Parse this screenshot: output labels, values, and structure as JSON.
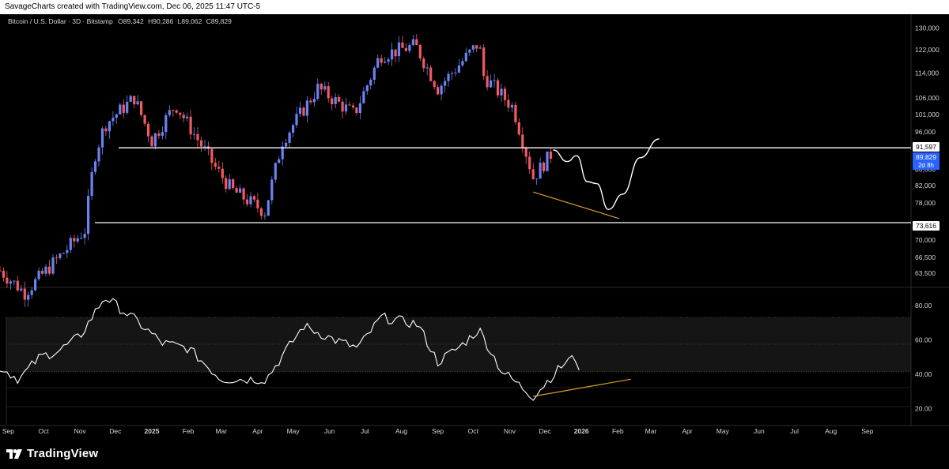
{
  "header": {
    "watermark": "SavageCharts created with TradingView.com, Dec 06, 2025 11:47 UTC-5"
  },
  "legend": {
    "symbol": "Bitcoin / U.S. Dollar · 3D · Bitstamp",
    "open_label": "O",
    "open": "89,342",
    "high_label": "H",
    "high": "90,286",
    "low_label": "L",
    "low": "89,062",
    "close_label": "C",
    "close": "89,829"
  },
  "price_badges": {
    "resistance": "91,597",
    "support": "73,616",
    "last_price": "89,829",
    "countdown": "2d 8h"
  },
  "footer": {
    "logo_text": "TradingView"
  },
  "colors": {
    "up": "#6b82f2",
    "down": "#ef5a63",
    "line": "#ffffff",
    "trend": "#d4a02a",
    "last_price_badge": "#2962ff",
    "rsi_band": "#161616"
  },
  "chart_data": [
    {
      "type": "candlestick",
      "title": "Bitcoin / U.S. Dollar · 3D · Bitstamp",
      "y_scale": "log",
      "ylim": [
        62500,
        131000
      ],
      "y_ticks": [
        "130,000",
        "122,000",
        "114,000",
        "106,000",
        "101,000",
        "96,000",
        "91,597",
        "86,000",
        "82,000",
        "78,000",
        "73,616",
        "70,000",
        "66,500",
        "63,500"
      ],
      "x_ticks": [
        "Sep",
        "Oct",
        "Nov",
        "Dec",
        "2025",
        "Feb",
        "Mar",
        "Apr",
        "May",
        "Jun",
        "Jul",
        "Aug",
        "Sep",
        "Oct",
        "Nov",
        "Dec",
        "2026",
        "Feb",
        "Mar",
        "Apr",
        "May",
        "Jun",
        "Jul",
        "Aug",
        "Sep"
      ],
      "horizontal_levels": [
        91597,
        73616
      ],
      "approx_close_path": [
        {
          "date": "2024-08-25",
          "close": 64000
        },
        {
          "date": "2024-09-15",
          "close": 60000
        },
        {
          "date": "2024-10-01",
          "close": 63500
        },
        {
          "date": "2024-10-20",
          "close": 68000
        },
        {
          "date": "2024-11-05",
          "close": 72000
        },
        {
          "date": "2024-11-13",
          "close": 89000
        },
        {
          "date": "2024-11-22",
          "close": 98000
        },
        {
          "date": "2024-12-17",
          "close": 106000
        },
        {
          "date": "2025-01-01",
          "close": 93500
        },
        {
          "date": "2025-01-21",
          "close": 104000
        },
        {
          "date": "2025-02-25",
          "close": 86000
        },
        {
          "date": "2025-03-10",
          "close": 81000
        },
        {
          "date": "2025-04-07",
          "close": 76000
        },
        {
          "date": "2025-04-22",
          "close": 93500
        },
        {
          "date": "2025-05-22",
          "close": 109000
        },
        {
          "date": "2025-06-22",
          "close": 101000
        },
        {
          "date": "2025-07-14",
          "close": 120000
        },
        {
          "date": "2025-08-13",
          "close": 123500
        },
        {
          "date": "2025-09-01",
          "close": 109000
        },
        {
          "date": "2025-10-06",
          "close": 124500
        },
        {
          "date": "2025-10-10",
          "close": 113000
        },
        {
          "date": "2025-11-04",
          "close": 103000
        },
        {
          "date": "2025-11-21",
          "close": 84000
        },
        {
          "date": "2025-12-06",
          "close": 89829
        }
      ],
      "drawings": [
        {
          "kind": "projection_path",
          "points": [
            {
              "date": "2025-12-08",
              "price": 91000
            },
            {
              "date": "2025-12-20",
              "price": 88000
            },
            {
              "date": "2025-12-28",
              "price": 89500
            },
            {
              "date": "2026-01-06",
              "price": 83000
            },
            {
              "date": "2026-01-14",
              "price": 82500
            },
            {
              "date": "2026-01-24",
              "price": 76500
            },
            {
              "date": "2026-02-05",
              "price": 80000
            },
            {
              "date": "2026-02-20",
              "price": 89000
            },
            {
              "date": "2026-03-08",
              "price": 94000
            }
          ]
        },
        {
          "kind": "trend_line",
          "points": [
            {
              "date": "2025-11-21",
              "price": 80500
            },
            {
              "date": "2026-02-02",
              "price": 74500
            }
          ]
        }
      ]
    },
    {
      "type": "line",
      "title": "RSI",
      "ylim": [
        10,
        90
      ],
      "y_ticks": [
        "80.00",
        "60.00",
        "40.00",
        "20.00"
      ],
      "bands": [
        70,
        50,
        30
      ],
      "series": [
        {
          "values": [
            {
              "date": "2024-08-25",
              "y": 44
            },
            {
              "date": "2024-09-10",
              "y": 37
            },
            {
              "date": "2024-09-28",
              "y": 50
            },
            {
              "date": "2024-10-15",
              "y": 54
            },
            {
              "date": "2024-11-01",
              "y": 62
            },
            {
              "date": "2024-11-22",
              "y": 85
            },
            {
              "date": "2024-12-17",
              "y": 72
            },
            {
              "date": "2025-01-10",
              "y": 58
            },
            {
              "date": "2025-02-01",
              "y": 55
            },
            {
              "date": "2025-03-01",
              "y": 37
            },
            {
              "date": "2025-04-08",
              "y": 37
            },
            {
              "date": "2025-05-10",
              "y": 68
            },
            {
              "date": "2025-06-05",
              "y": 60
            },
            {
              "date": "2025-06-25",
              "y": 55
            },
            {
              "date": "2025-07-15",
              "y": 73
            },
            {
              "date": "2025-08-15",
              "y": 69
            },
            {
              "date": "2025-09-01",
              "y": 47
            },
            {
              "date": "2025-09-20",
              "y": 56
            },
            {
              "date": "2025-10-06",
              "y": 66
            },
            {
              "date": "2025-10-25",
              "y": 42
            },
            {
              "date": "2025-11-21",
              "y": 27
            },
            {
              "date": "2025-12-06",
              "y": 38
            },
            {
              "date": "2025-12-20",
              "y": 48
            },
            {
              "date": "2025-12-28",
              "y": 49
            },
            {
              "date": "2026-01-01",
              "y": 40
            }
          ]
        }
      ],
      "drawings": [
        {
          "kind": "trend_line",
          "points": [
            {
              "date": "2025-11-21",
              "y": 27
            },
            {
              "date": "2026-02-12",
              "y": 37
            }
          ]
        }
      ]
    }
  ]
}
